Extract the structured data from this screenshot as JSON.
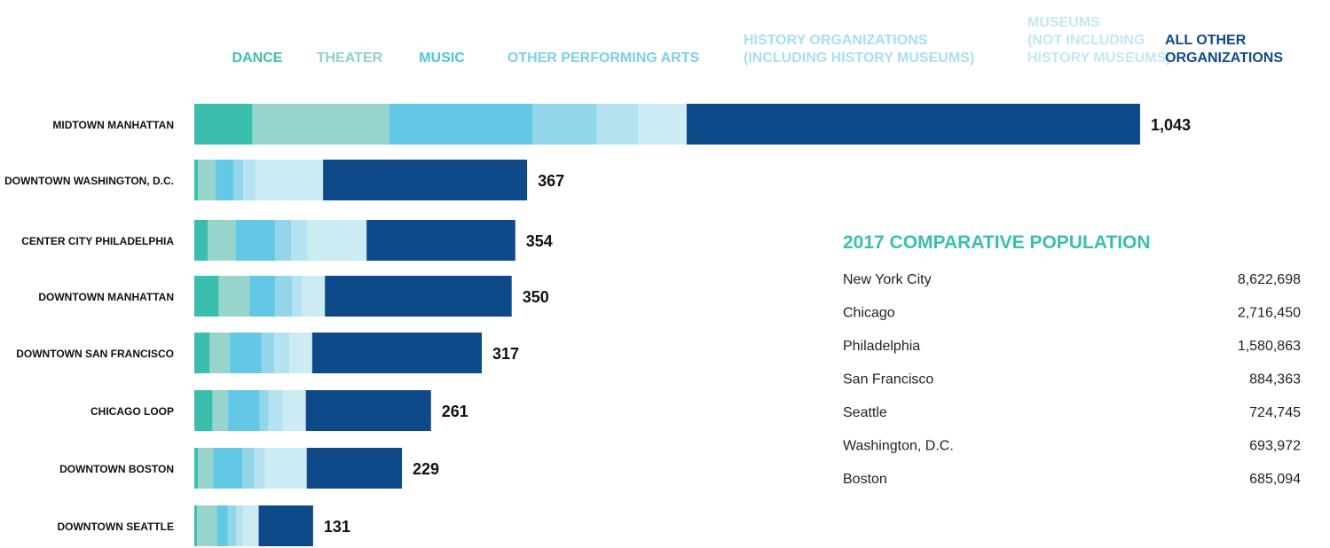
{
  "chart_data": {
    "type": "stacked-bar",
    "categories": [
      "MIDTOWN MANHATTAN",
      "DOWNTOWN WASHINGTON, D.C.",
      "CENTER CITY PHILADELPHIA",
      "DOWNTOWN MANHATTAN",
      "DOWNTOWN SAN FRANCISCO",
      "CHICAGO LOOP",
      "DOWNTOWN BOSTON",
      "DOWNTOWN SEATTLE"
    ],
    "series": [
      {
        "name": "DANCE",
        "color": "#3bbfad",
        "values": [
          64,
          4,
          15,
          27,
          17,
          20,
          4,
          3
        ]
      },
      {
        "name": "THEATER",
        "color": "#96d4cc",
        "values": [
          151,
          20,
          31,
          34,
          22,
          17,
          17,
          22
        ]
      },
      {
        "name": "MUSIC",
        "color": "#62c8e5",
        "values": [
          158,
          19,
          43,
          28,
          35,
          35,
          32,
          12
        ]
      },
      {
        "name": "OTHER PERFORMING ARTS",
        "color": "#93d6ea",
        "values": [
          71,
          11,
          18,
          19,
          14,
          10,
          13,
          9
        ]
      },
      {
        "name": "HISTORY ORGANIZATIONS\n(INCLUDING HISTORY MUSEUMS)",
        "color": "#b5e2f0",
        "values": [
          46,
          13,
          18,
          11,
          17,
          16,
          12,
          8
        ]
      },
      {
        "name": "MUSEUMS\n(NOT INCLUDING\nHISTORY MUSEUMS)",
        "color": "#cdebf3",
        "values": [
          53,
          75,
          65,
          25,
          25,
          25,
          46,
          17
        ]
      },
      {
        "name": "ALL OTHER\nORGANIZATIONS",
        "color": "#0e4a8a",
        "values": [
          500,
          225,
          164,
          206,
          187,
          138,
          105,
          60
        ]
      }
    ],
    "totals": [
      {
        "value": 1043,
        "label": "1,043"
      },
      367,
      354,
      350,
      317,
      261,
      229,
      131
    ]
  },
  "population_table": {
    "title": "2017 COMPARATIVE POPULATION",
    "rows": [
      [
        "New York City",
        "8,622,698"
      ],
      [
        "Chicago",
        "2,716,450"
      ],
      [
        "Philadelphia",
        "1,580,863"
      ],
      [
        "San Francisco",
        "884,363"
      ],
      [
        "Seattle",
        "724,745"
      ],
      [
        "Washington, D.C.",
        "693,972"
      ],
      [
        "Boston",
        "685,094"
      ]
    ]
  }
}
